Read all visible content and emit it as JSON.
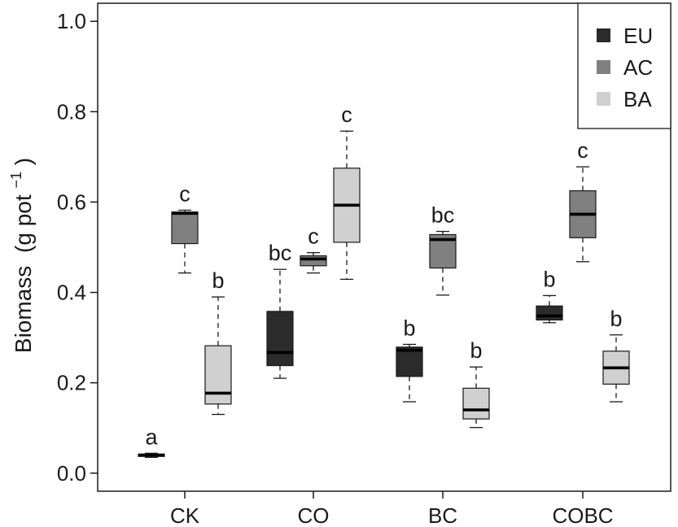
{
  "chart_data": {
    "type": "boxplot",
    "ylabel_main": "Biomass",
    "ylabel_unit_base": "(g pot",
    "ylabel_unit_sup": "−1",
    "ylabel_unit_close": ")",
    "ylim": [
      -0.04,
      1.04
    ],
    "yticks": [
      0.0,
      0.2,
      0.4,
      0.6,
      0.8,
      1.0
    ],
    "ytick_labels": [
      "0.0",
      "0.2",
      "0.4",
      "0.6",
      "0.8",
      "1.0"
    ],
    "categories": [
      "CK",
      "CO",
      "BC",
      "COBC"
    ],
    "legend_position": "top-right",
    "series": [
      {
        "name": "EU",
        "color": "#2b2b2b",
        "median_color": "#000000",
        "boxes": [
          {
            "category": "CK",
            "min": 0.035,
            "q1": 0.037,
            "median": 0.04,
            "q3": 0.042,
            "max": 0.044,
            "letter": "a"
          },
          {
            "category": "CO",
            "min": 0.21,
            "q1": 0.238,
            "median": 0.267,
            "q3": 0.358,
            "max": 0.451,
            "letter": "bc"
          },
          {
            "category": "BC",
            "min": 0.158,
            "q1": 0.214,
            "median": 0.272,
            "q3": 0.279,
            "max": 0.285,
            "letter": "b"
          },
          {
            "category": "COBC",
            "min": 0.333,
            "q1": 0.339,
            "median": 0.348,
            "q3": 0.37,
            "max": 0.393,
            "letter": "b"
          }
        ]
      },
      {
        "name": "AC",
        "color": "#808080",
        "median_color": "#000000",
        "boxes": [
          {
            "category": "CK",
            "min": 0.443,
            "q1": 0.508,
            "median": 0.575,
            "q3": 0.578,
            "max": 0.582,
            "letter": "c"
          },
          {
            "category": "CO",
            "min": 0.443,
            "q1": 0.459,
            "median": 0.474,
            "q3": 0.481,
            "max": 0.488,
            "letter": "c"
          },
          {
            "category": "BC",
            "min": 0.394,
            "q1": 0.454,
            "median": 0.517,
            "q3": 0.528,
            "max": 0.535,
            "letter": "bc"
          },
          {
            "category": "COBC",
            "min": 0.468,
            "q1": 0.521,
            "median": 0.573,
            "q3": 0.625,
            "max": 0.678,
            "letter": "c"
          }
        ]
      },
      {
        "name": "BA",
        "color": "#d0d0d0",
        "median_color": "#000000",
        "boxes": [
          {
            "category": "CK",
            "min": 0.13,
            "q1": 0.153,
            "median": 0.177,
            "q3": 0.282,
            "max": 0.39,
            "letter": "b"
          },
          {
            "category": "CO",
            "min": 0.429,
            "q1": 0.511,
            "median": 0.593,
            "q3": 0.675,
            "max": 0.757,
            "letter": "c"
          },
          {
            "category": "BC",
            "min": 0.101,
            "q1": 0.12,
            "median": 0.14,
            "q3": 0.188,
            "max": 0.235,
            "letter": "b"
          },
          {
            "category": "COBC",
            "min": 0.158,
            "q1": 0.197,
            "median": 0.233,
            "q3": 0.27,
            "max": 0.306,
            "letter": "b"
          }
        ]
      }
    ]
  }
}
